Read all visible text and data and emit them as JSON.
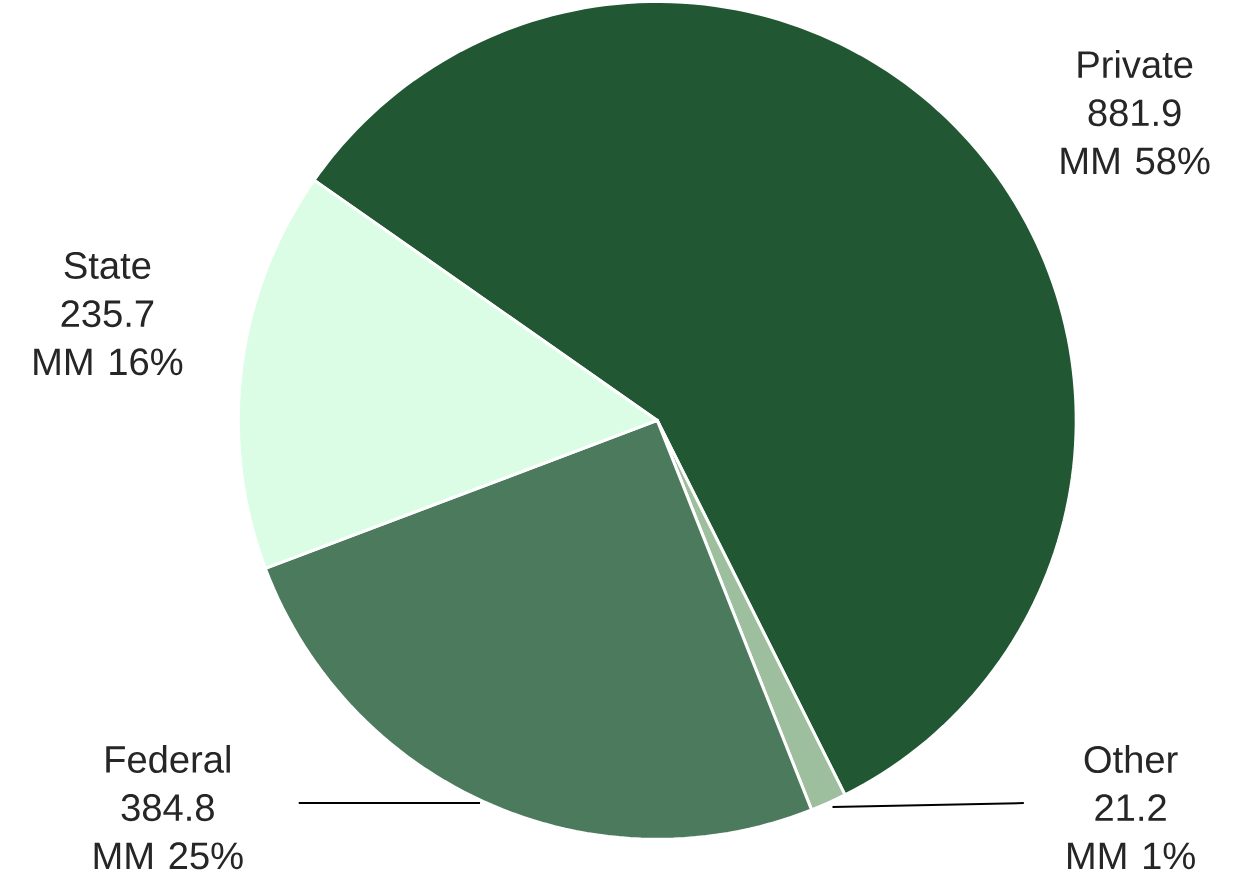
{
  "chart_data": {
    "type": "pie",
    "categories": [
      "Private",
      "Other",
      "Federal",
      "State"
    ],
    "values": [
      881.9,
      21.2,
      384.8,
      235.7
    ],
    "colors": [
      "#215732",
      "#9dbf9e",
      "#4b7a5d",
      "#dbfde6"
    ],
    "value_labels": [
      "881.9 MM 58%",
      "21.2 MM 1%",
      "384.8 MM 25%",
      "235.7 MM 16%"
    ]
  }
}
